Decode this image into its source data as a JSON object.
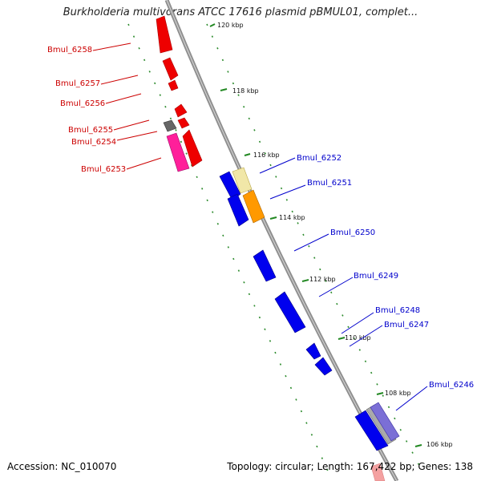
{
  "title": "Burkholderia multivorans ATCC 17616 plasmid pBMUL01, complet...",
  "footer": {
    "accession": "Accession: NC_010070",
    "summary": "Topology: circular; Length: 167,422 bp; Genes: 138"
  },
  "colors": {
    "forward": "#0000ee",
    "reverse": "#ee0000",
    "backbone": "#888888",
    "tick": "#228822",
    "forward_label": "#0000cc",
    "reverse_label": "#cc0000"
  },
  "ticks": [
    "120 kbp",
    "118 kbp",
    "116 kbp",
    "114 kbp",
    "112 kbp",
    "110 kbp",
    "108 kbp",
    "106 kbp"
  ],
  "forward_genes": [
    "Bmul_6252",
    "Bmul_6251",
    "Bmul_6250",
    "Bmul_6249",
    "Bmul_6248",
    "Bmul_6247",
    "Bmul_6246"
  ],
  "reverse_genes": [
    "Bmul_6258",
    "Bmul_6257",
    "Bmul_6256",
    "Bmul_6255",
    "Bmul_6254",
    "Bmul_6253"
  ]
}
